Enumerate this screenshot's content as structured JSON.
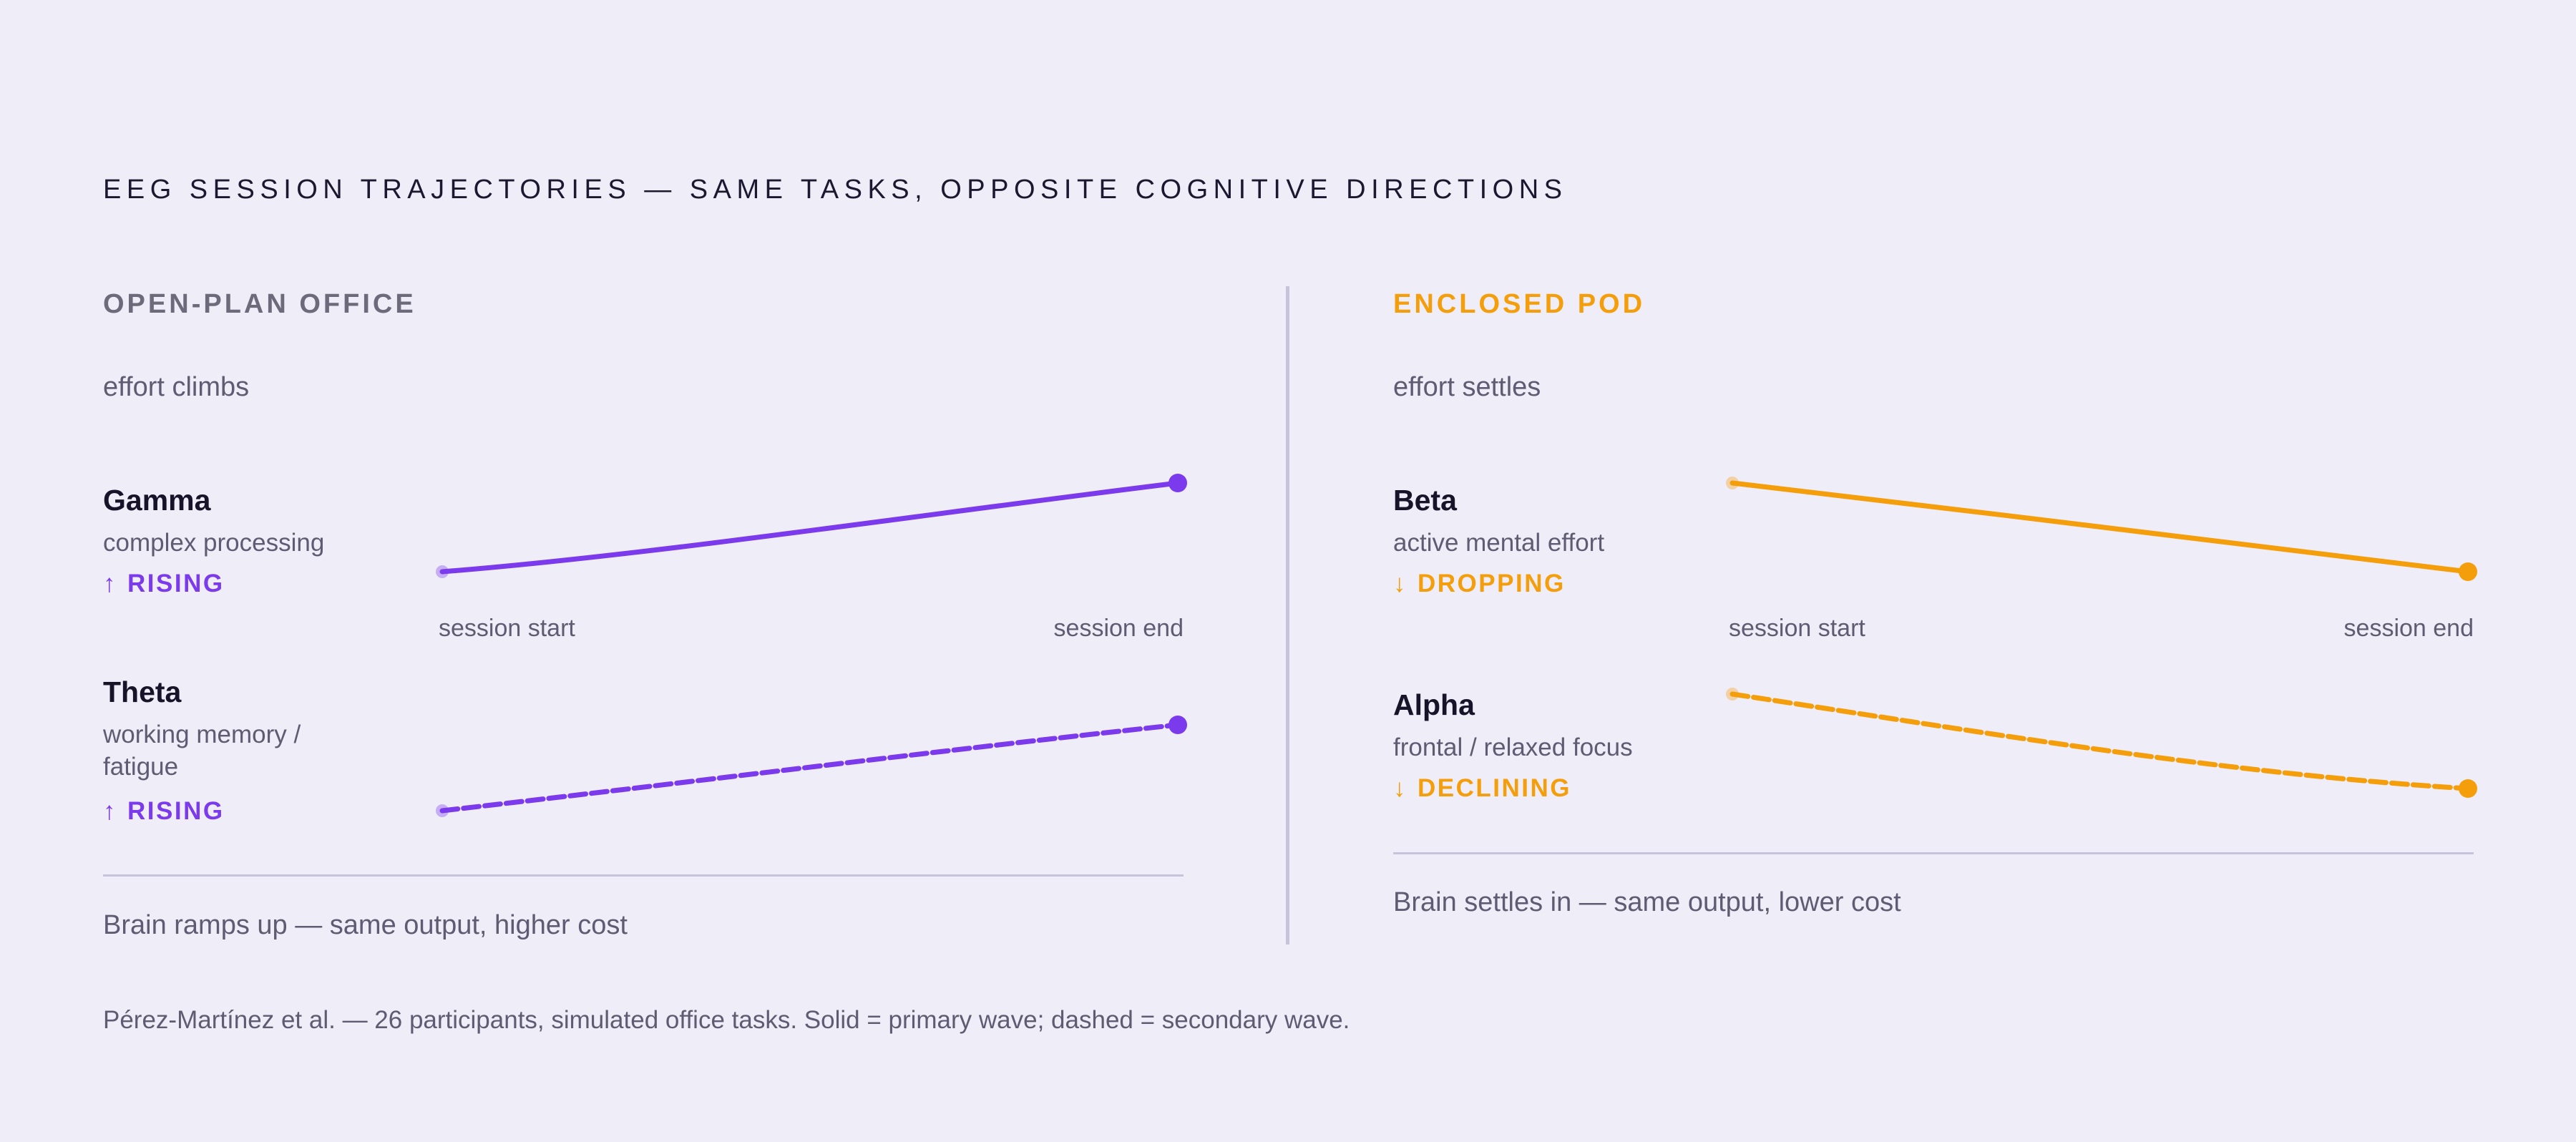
{
  "title": "EEG SESSION TRAJECTORIES — SAME TASKS, OPPOSITE COGNITIVE DIRECTIONS",
  "footnote": "Pérez-Martínez et al. — 26 participants, simulated office tasks. Solid = primary wave; dashed = secondary wave.",
  "colors": {
    "open": "#7c3aed",
    "pod": "#f59e0b",
    "text": "#17142a",
    "muted": "#5f5b72",
    "rule": "#c7c3db",
    "bg": "#efedf7"
  },
  "panels": [
    {
      "title": "OPEN-PLAN OFFICE",
      "subtitle": "effort climbs",
      "summary": "Brain ramps up — same output, higher cost",
      "waves": [
        {
          "name": "Gamma",
          "desc": "complex processing",
          "trend": "RISING",
          "arrow": "↑",
          "style": "solid",
          "x_start": "session start",
          "x_end": "session end"
        },
        {
          "name": "Theta",
          "desc": "working memory / fatigue",
          "trend": "RISING",
          "arrow": "↑",
          "style": "dashed"
        }
      ]
    },
    {
      "title": "ENCLOSED POD",
      "subtitle": "effort settles",
      "summary": "Brain settles in — same output, lower cost",
      "waves": [
        {
          "name": "Beta",
          "desc": "active mental effort",
          "trend": "DROPPING",
          "arrow": "↓",
          "style": "solid",
          "x_start": "session start",
          "x_end": "session end"
        },
        {
          "name": "Alpha",
          "desc": "frontal / relaxed focus",
          "trend": "DECLINING",
          "arrow": "↓",
          "style": "dashed"
        }
      ]
    }
  ],
  "chart_data": [
    {
      "type": "line",
      "title": "OPEN-PLAN OFFICE",
      "x": [
        "session start",
        "session end"
      ],
      "series": [
        {
          "name": "Gamma",
          "values": [
            0,
            1
          ],
          "trend": "rising"
        },
        {
          "name": "Theta",
          "values": [
            0,
            1
          ],
          "trend": "rising"
        }
      ],
      "grid": false
    },
    {
      "type": "line",
      "title": "ENCLOSED POD",
      "x": [
        "session start",
        "session end"
      ],
      "series": [
        {
          "name": "Beta",
          "values": [
            1,
            0
          ],
          "trend": "dropping"
        },
        {
          "name": "Alpha",
          "values": [
            1,
            0
          ],
          "trend": "declining"
        }
      ],
      "grid": false
    }
  ]
}
